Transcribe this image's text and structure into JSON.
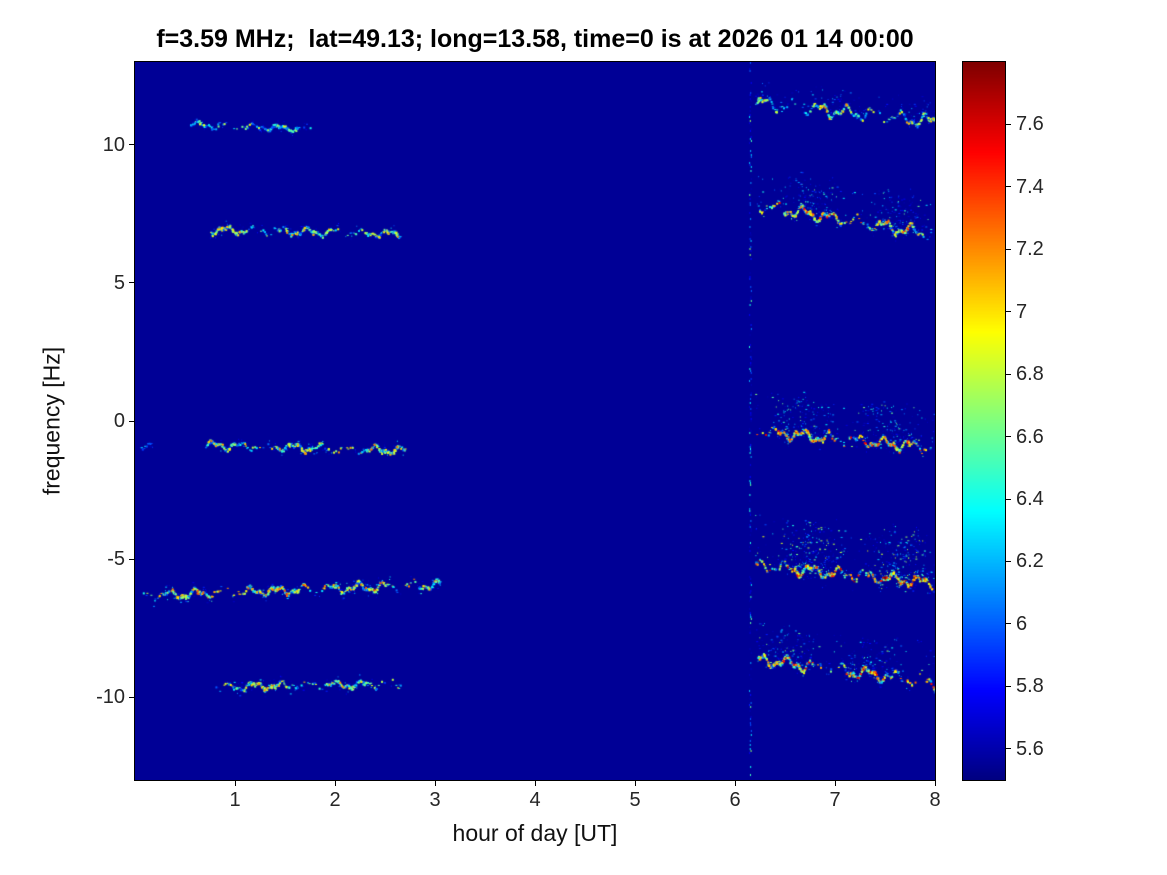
{
  "chart_data": {
    "type": "heatmap",
    "subtype": "doppler-spectrogram",
    "title": "f=3.59 MHz;  lat=49.13; long=13.58, time=0 is at 2026 01 14 00:00",
    "xlabel": "hour of day [UT]",
    "ylabel": "frequency [Hz]",
    "xlim": [
      0,
      8
    ],
    "ylim": [
      -13,
      13
    ],
    "x_ticks": [
      1,
      2,
      3,
      4,
      5,
      6,
      7,
      8
    ],
    "y_ticks": [
      -10,
      -5,
      0,
      5,
      10
    ],
    "colormap": "jet",
    "grid": false,
    "legend": "none",
    "background_value": 5.55,
    "colorbar": {
      "position": "right",
      "clim": [
        5.5,
        7.8
      ],
      "tick_values": [
        5.6,
        5.8,
        6.0,
        6.2,
        6.4,
        6.6,
        6.8,
        7.0,
        7.2,
        7.4,
        7.6
      ],
      "tick_labels": [
        "5.6",
        "5.8",
        "6",
        "6.2",
        "6.4",
        "6.6",
        "6.8",
        "7",
        "7.2",
        "7.4",
        "7.6"
      ]
    },
    "artifact_line": {
      "t": 6.15,
      "intensity": 0.45
    },
    "bands": [
      {
        "name": "doppler-trace-plus11Hz",
        "segments": [
          {
            "t0": 0.55,
            "t1": 1.75,
            "f0": 10.75,
            "f1": 10.6,
            "intensity": 0.4,
            "spread": 0.18,
            "spread_dir": "sym",
            "core": 0.55,
            "wiggle": 0.08
          },
          {
            "t0": 6.2,
            "t1": 8.0,
            "f0": 11.55,
            "f1": 10.85,
            "intensity": 0.55,
            "spread": 0.45,
            "spread_dir": "up",
            "core": 0.7,
            "wiggle": 0.18
          }
        ]
      },
      {
        "name": "doppler-trace-plus7Hz",
        "segments": [
          {
            "t0": 0.75,
            "t1": 2.65,
            "f0": 6.95,
            "f1": 6.8,
            "intensity": 0.55,
            "spread": 0.25,
            "spread_dir": "sym",
            "core": 0.7,
            "wiggle": 0.1
          },
          {
            "t0": 6.2,
            "t1": 8.0,
            "f0": 7.85,
            "f1": 6.75,
            "intensity": 0.8,
            "spread": 0.8,
            "spread_dir": "up",
            "core": 0.85,
            "wiggle": 0.16
          }
        ]
      },
      {
        "name": "doppler-trace-minus1Hz",
        "segments": [
          {
            "t0": 0.04,
            "t1": 0.2,
            "f0": -0.9,
            "f1": -0.9,
            "intensity": 0.25,
            "spread": 0.12,
            "spread_dir": "sym",
            "core": 0.3,
            "wiggle": 0.05
          },
          {
            "t0": 0.7,
            "t1": 2.7,
            "f0": -0.85,
            "f1": -1.05,
            "intensity": 0.6,
            "spread": 0.25,
            "spread_dir": "sym",
            "core": 0.7,
            "wiggle": 0.1
          },
          {
            "t0": 6.2,
            "t1": 8.0,
            "f0": -0.35,
            "f1": -0.95,
            "intensity": 0.85,
            "spread": 0.9,
            "spread_dir": "up",
            "core": 0.9,
            "wiggle": 0.15
          }
        ]
      },
      {
        "name": "doppler-trace-minus6Hz",
        "segments": [
          {
            "t0": 0.05,
            "t1": 3.05,
            "f0": -6.3,
            "f1": -5.9,
            "intensity": 0.7,
            "spread": 0.3,
            "spread_dir": "sym",
            "core": 0.8,
            "wiggle": 0.12
          },
          {
            "t0": 6.2,
            "t1": 8.0,
            "f0": -5.2,
            "f1": -5.85,
            "intensity": 1.0,
            "spread": 1.1,
            "spread_dir": "up",
            "core": 1.0,
            "wiggle": 0.15
          }
        ]
      },
      {
        "name": "doppler-trace-minus9p5Hz",
        "segments": [
          {
            "t0": 0.8,
            "t1": 2.65,
            "f0": -9.6,
            "f1": -9.5,
            "intensity": 0.6,
            "spread": 0.3,
            "spread_dir": "sym",
            "core": 0.7,
            "wiggle": 0.1
          },
          {
            "t0": 6.2,
            "t1": 8.0,
            "f0": -8.6,
            "f1": -9.45,
            "intensity": 0.85,
            "spread": 0.8,
            "spread_dir": "up",
            "core": 0.9,
            "wiggle": 0.16
          }
        ]
      }
    ]
  }
}
